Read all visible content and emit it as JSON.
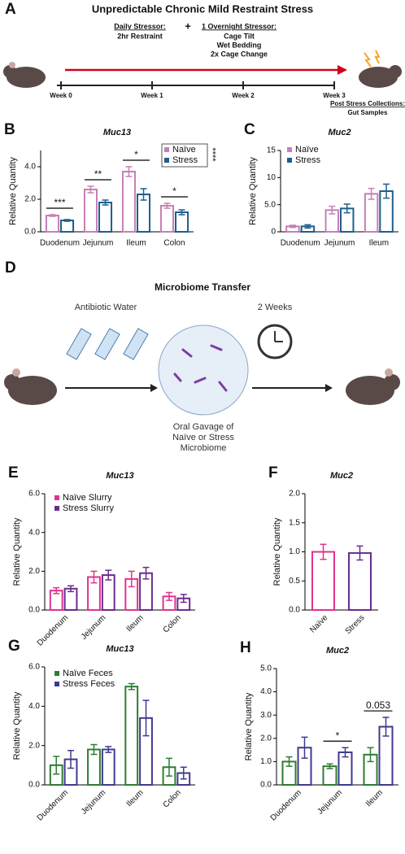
{
  "diagram_a": {
    "panel": "A",
    "title": "Unpredictable Chronic Mild Restraint Stress",
    "daily_label": "Daily Stressor:",
    "daily_text": "2hr Restraint",
    "plus": "+",
    "overnight_label": "1 Overnight Stressor:",
    "overnight_items": [
      "Cage Tilt",
      "Wet Bedding",
      "2x Cage Change"
    ],
    "weeks": [
      "Week 0",
      "Week 1",
      "Week 2",
      "Week 3"
    ],
    "collections_label": "Post Stress Collections:",
    "collections_text": "Gut Samples"
  },
  "diagram_d": {
    "panel": "D",
    "title": "Microbiome Transfer",
    "step1": "Antibiotic Water",
    "step2": "2 Weeks",
    "gavage": [
      "Oral Gavage of",
      "Naïve or Stress",
      "Microbiome"
    ]
  },
  "chart_data": [
    {
      "type": "bar",
      "panel": "B",
      "title": "Muc13",
      "ylabel": "Relative Quantity",
      "categories": [
        "Duodenum",
        "Jejunum",
        "Ileum",
        "Colon"
      ],
      "series": [
        {
          "name": "Naïve",
          "color": "#c77fb6",
          "values": [
            1.0,
            2.6,
            3.7,
            1.6
          ],
          "errors": [
            0.05,
            0.2,
            0.3,
            0.15
          ]
        },
        {
          "name": "Stress",
          "color": "#1d5f8c",
          "values": [
            0.7,
            1.8,
            2.3,
            1.2
          ],
          "errors": [
            0.05,
            0.15,
            0.35,
            0.15
          ]
        }
      ],
      "ylim": [
        0,
        5
      ],
      "yticks": [
        {
          "value": 0,
          "label": "0.0"
        },
        {
          "value": 2,
          "label": "2.0"
        },
        {
          "value": 4,
          "label": "4.0"
        }
      ],
      "annotations": [
        {
          "text": "***",
          "category": 0
        },
        {
          "text": "**",
          "category": 1
        },
        {
          "text": "*",
          "category": 2
        },
        {
          "text": "*",
          "category": 3
        }
      ],
      "legend_annotation": "****"
    },
    {
      "type": "bar",
      "panel": "C",
      "title": "Muc2",
      "ylabel": "Relative Quantity",
      "categories": [
        "Duodenum",
        "Jejunum",
        "Ileum"
      ],
      "series": [
        {
          "name": "Naïve",
          "color": "#c77fb6",
          "values": [
            1.0,
            4.0,
            7.0
          ],
          "errors": [
            0.2,
            0.7,
            1.0
          ]
        },
        {
          "name": "Stress",
          "color": "#1d5f8c",
          "values": [
            1.0,
            4.3,
            7.5
          ],
          "errors": [
            0.3,
            0.8,
            1.3
          ]
        }
      ],
      "ylim": [
        0,
        15
      ],
      "yticks": [
        0,
        {
          "value": 5,
          "label": "5.0"
        },
        10,
        15
      ]
    },
    {
      "type": "bar",
      "panel": "E",
      "title": "Muc13",
      "ylabel": "Relative Quantity",
      "categories": [
        "Duodenum",
        "Jejunum",
        "Ileum",
        "Colon"
      ],
      "series": [
        {
          "name": "Naïve Slurry",
          "color": "#e0338f",
          "values": [
            1.0,
            1.7,
            1.6,
            0.7
          ],
          "errors": [
            0.15,
            0.3,
            0.4,
            0.2
          ]
        },
        {
          "name": "Stress Slurry",
          "color": "#6a2c8f",
          "values": [
            1.1,
            1.8,
            1.9,
            0.6
          ],
          "errors": [
            0.15,
            0.25,
            0.3,
            0.2
          ]
        }
      ],
      "ylim": [
        0,
        6
      ],
      "yticks": [
        {
          "value": 0,
          "label": "0.0"
        },
        {
          "value": 2,
          "label": "2.0"
        },
        {
          "value": 4,
          "label": "4.0"
        },
        {
          "value": 6,
          "label": "6.0"
        }
      ]
    },
    {
      "type": "bar",
      "panel": "F",
      "title": "Muc2",
      "ylabel": "Relative Quantity",
      "categories": [
        "Naïve",
        "Stress"
      ],
      "series": [
        {
          "colors": [
            "#e0338f",
            "#6a2c8f"
          ],
          "values": [
            1.0,
            0.98
          ],
          "errors": [
            0.13,
            0.12
          ]
        }
      ],
      "ylim": [
        0,
        2
      ],
      "yticks": [
        {
          "value": 0,
          "label": "0.0"
        },
        0.5,
        {
          "value": 1,
          "label": "1.0"
        },
        1.5,
        {
          "value": 2,
          "label": "2.0"
        }
      ]
    },
    {
      "type": "bar",
      "panel": "G",
      "title": "Muc13",
      "ylabel": "Relative Quantity",
      "categories": [
        "Duodenum",
        "Jejunum",
        "Ileum",
        "Colon"
      ],
      "series": [
        {
          "name": "Naïve Feces",
          "color": "#2e7d32",
          "values": [
            1.0,
            1.8,
            5.0,
            0.9
          ],
          "errors": [
            0.45,
            0.25,
            0.15,
            0.45
          ]
        },
        {
          "name": "Stress Feces",
          "color": "#3f3a8f",
          "values": [
            1.3,
            1.8,
            3.4,
            0.6
          ],
          "errors": [
            0.45,
            0.15,
            0.9,
            0.3
          ]
        }
      ],
      "ylim": [
        0,
        6
      ],
      "yticks": [
        {
          "value": 0,
          "label": "0.0"
        },
        {
          "value": 2,
          "label": "2.0"
        },
        {
          "value": 4,
          "label": "4.0"
        },
        {
          "value": 6,
          "label": "6.0"
        }
      ]
    },
    {
      "type": "bar",
      "panel": "H",
      "title": "Muc2",
      "ylabel": "Relative Quantity",
      "categories": [
        "Duodenum",
        "Jejunum",
        "Ileum"
      ],
      "series": [
        {
          "color": "#2e7d32",
          "values": [
            1.0,
            0.8,
            1.3
          ],
          "errors": [
            0.2,
            0.1,
            0.3
          ]
        },
        {
          "color": "#3f3a8f",
          "values": [
            1.6,
            1.4,
            2.5
          ],
          "errors": [
            0.45,
            0.2,
            0.4
          ]
        }
      ],
      "ylim": [
        0,
        5
      ],
      "yticks": [
        {
          "value": 0,
          "label": "0.0"
        },
        {
          "value": 1,
          "label": "1.0"
        },
        {
          "value": 2,
          "label": "2.0"
        },
        {
          "value": 3,
          "label": "3.0"
        },
        {
          "value": 4,
          "label": "4.0"
        },
        {
          "value": 5,
          "label": "5.0"
        }
      ],
      "annotations": [
        {
          "text": "*",
          "category": 1
        },
        {
          "text": "0.053",
          "category": 2
        }
      ]
    }
  ]
}
